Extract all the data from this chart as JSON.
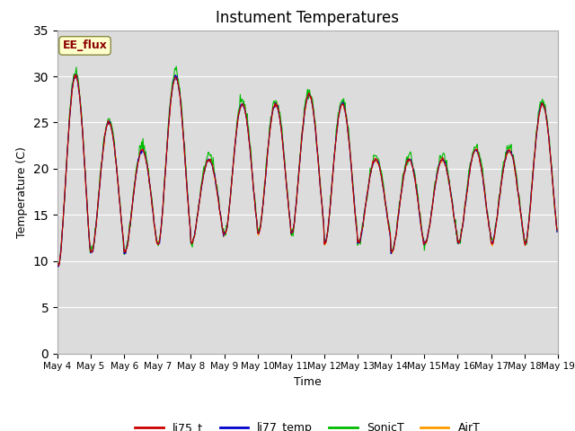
{
  "title": "Instument Temperatures",
  "xlabel": "Time",
  "ylabel": "Temperature (C)",
  "ylim": [
    0,
    35
  ],
  "yticks": [
    0,
    5,
    10,
    15,
    20,
    25,
    30,
    35
  ],
  "colors": {
    "li75_t": "#cc0000",
    "li77_temp": "#0000cc",
    "SonicT": "#00bb00",
    "AirT": "#ff9900"
  },
  "annotation_text": "EE_flux",
  "annotation_color": "#8b0000",
  "annotation_bg": "#ffffcc",
  "plot_bg": "#dcdcdc",
  "grid_color": "white",
  "title_fontsize": 12,
  "day_peaks": [
    30,
    25,
    22,
    30,
    21,
    27,
    27,
    28,
    27,
    21,
    21,
    21,
    22,
    22,
    27
  ],
  "day_troughs": [
    9.5,
    11,
    11,
    12,
    12,
    13,
    13,
    13,
    12,
    12,
    11,
    12,
    12,
    12,
    12
  ]
}
